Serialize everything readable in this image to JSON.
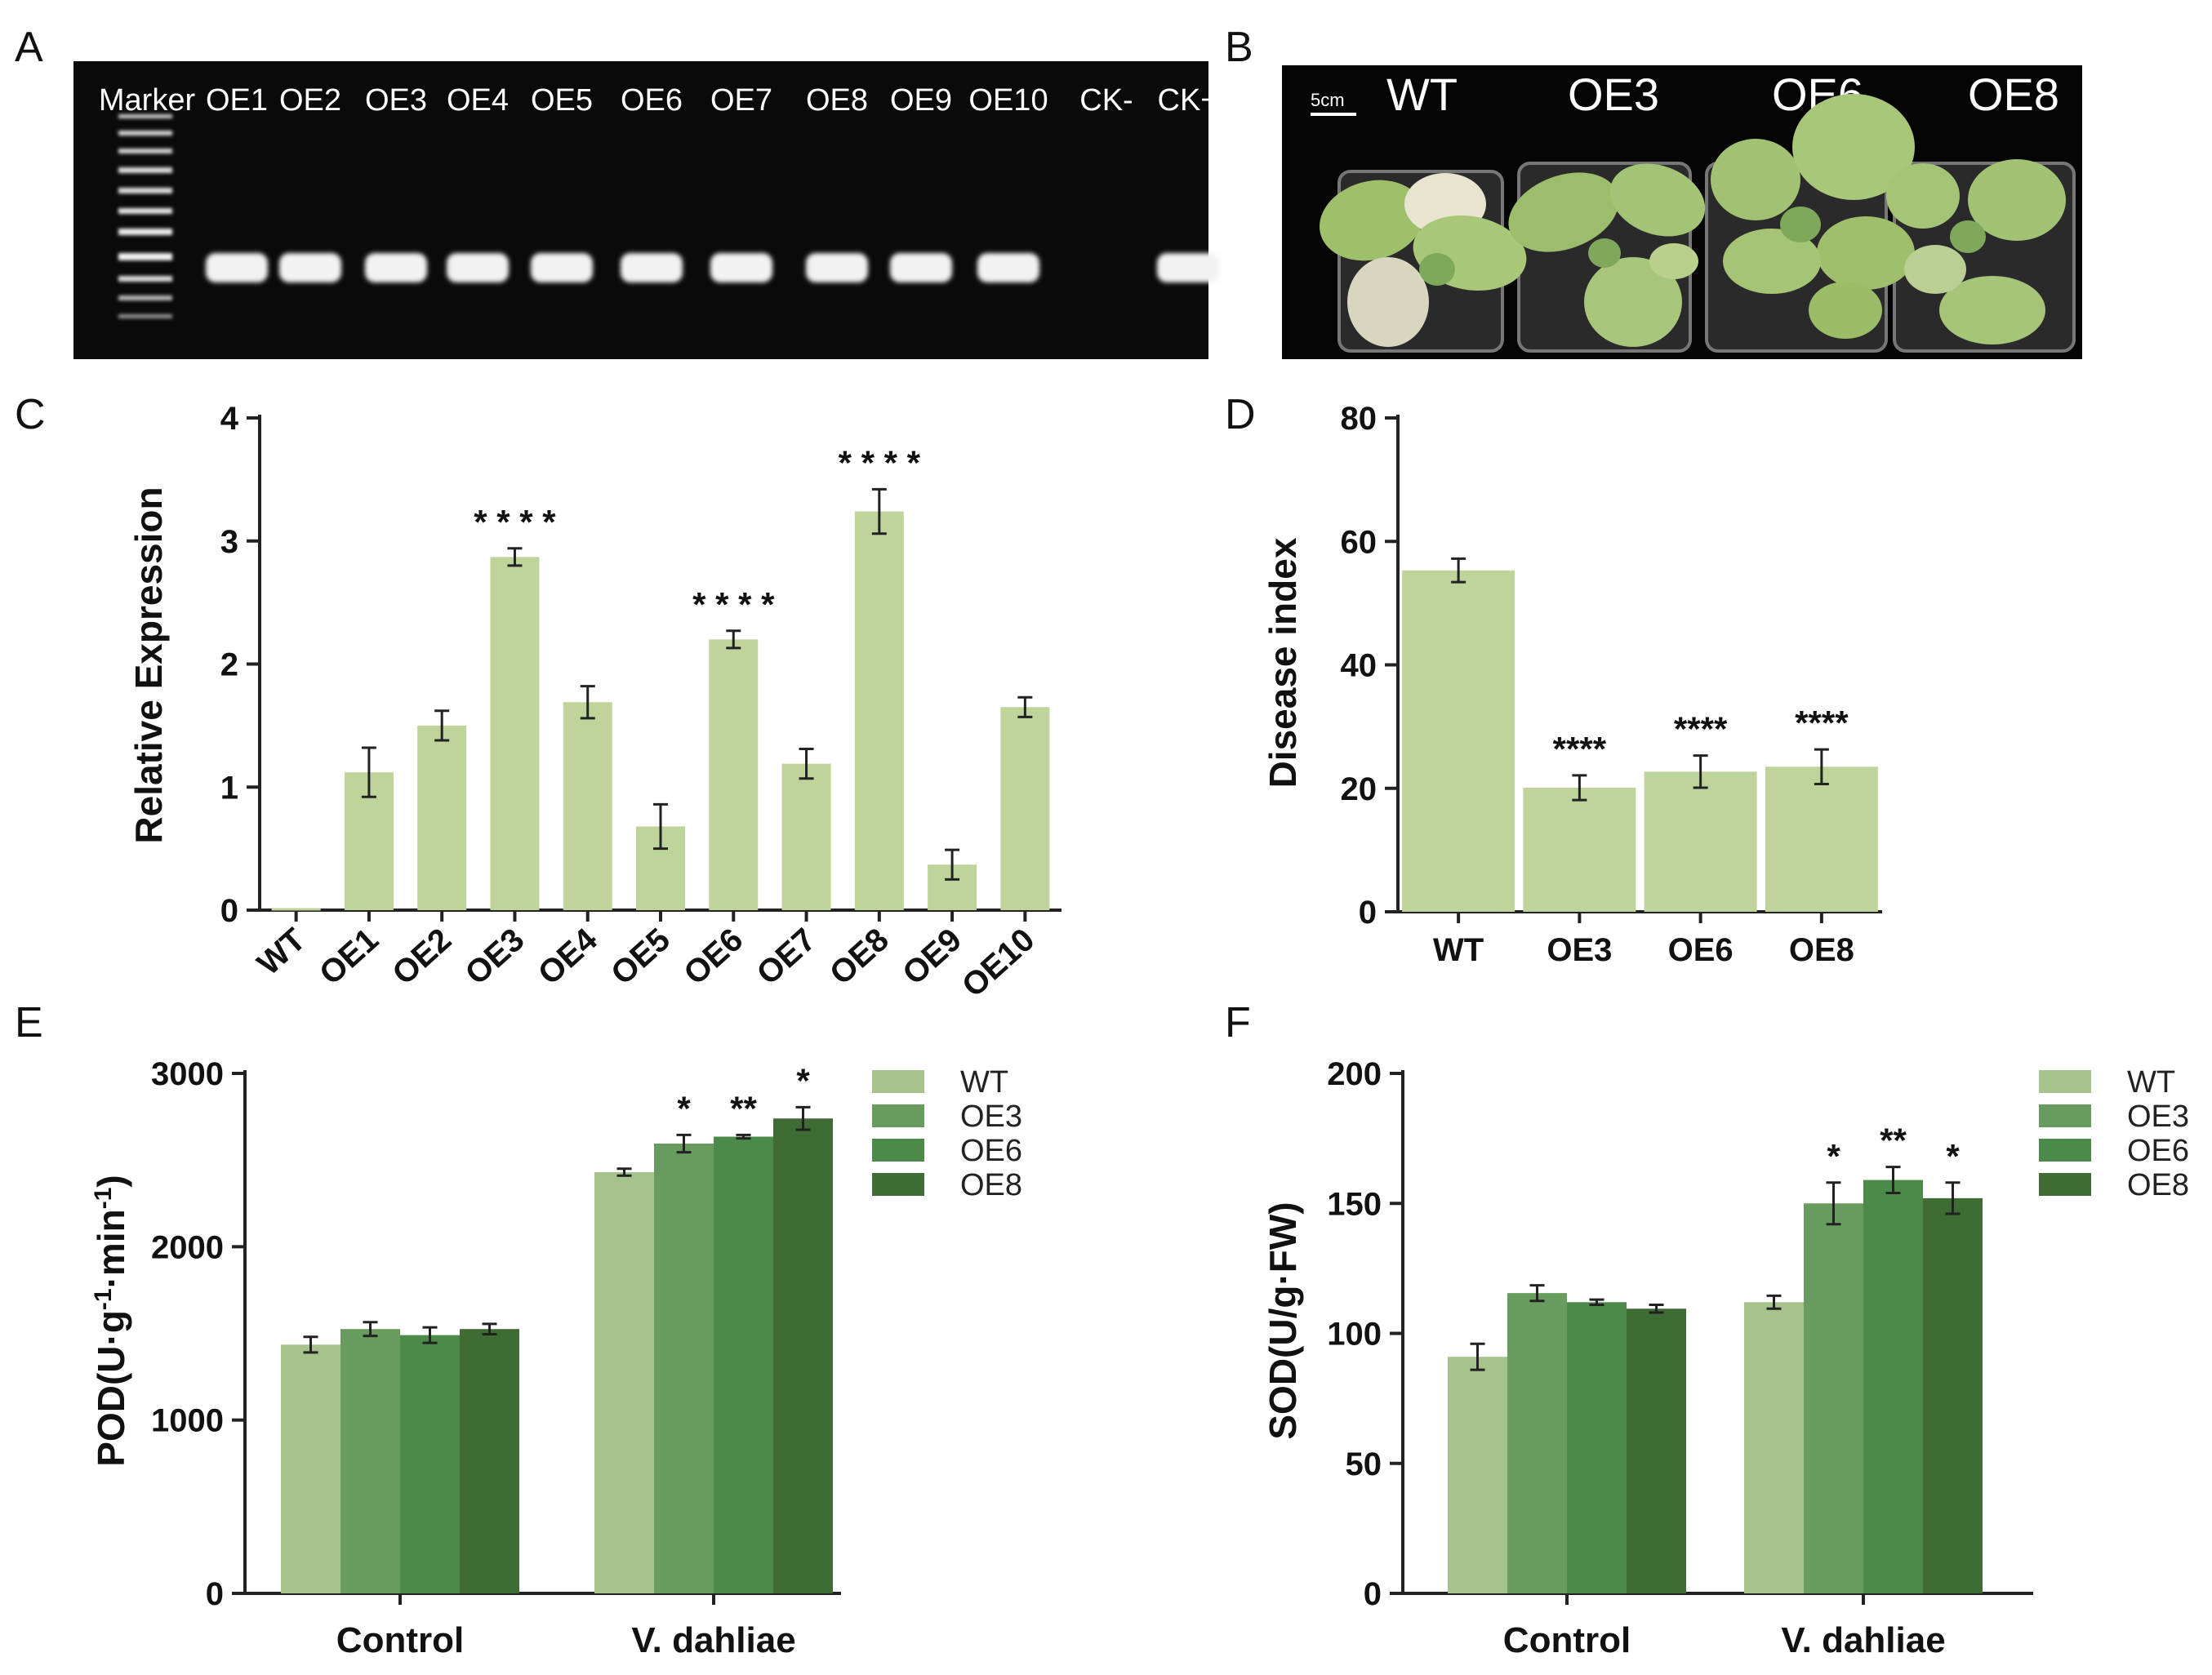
{
  "panels": {
    "a": {
      "label": "A",
      "lanes": [
        "Marker",
        "OE1",
        "OE2",
        "OE3",
        "OE4",
        "OE5",
        "OE6",
        "OE7",
        "OE8",
        "OE9",
        "OE10",
        "CK-",
        "CK+"
      ]
    },
    "b": {
      "label": "B",
      "scale_bar": "5cm",
      "plants": [
        "WT",
        "OE3",
        "OE6",
        "OE8"
      ]
    },
    "c": {
      "label": "C"
    },
    "d": {
      "label": "D"
    },
    "e": {
      "label": "E"
    },
    "f": {
      "label": "F"
    }
  },
  "colors": {
    "light": "#bfd49b",
    "wt": "#a5c38b",
    "oe3": "#689c5e",
    "oe6": "#4b8a48",
    "oe8": "#3f6b35"
  },
  "chart_data": [
    {
      "id": "C",
      "type": "bar",
      "categories": [
        "WT",
        "OE1",
        "OE2",
        "OE3",
        "OE4",
        "OE5",
        "OE6",
        "OE7",
        "OE8",
        "OE9",
        "OE10"
      ],
      "values": [
        0,
        1.12,
        1.5,
        2.87,
        1.69,
        0.68,
        2.2,
        1.19,
        3.24,
        0.37,
        1.65
      ],
      "errors": [
        0,
        0.2,
        0.12,
        0.07,
        0.13,
        0.18,
        0.07,
        0.12,
        0.18,
        0.12,
        0.08
      ],
      "significance": [
        "",
        "",
        "",
        "* * * *",
        "",
        "",
        "* * * *",
        "",
        "* * * *",
        "",
        ""
      ],
      "ylabel": "Relative Expression",
      "ylim": [
        0,
        4
      ],
      "yticks": [
        "0",
        "1",
        "2",
        "3",
        "4"
      ]
    },
    {
      "id": "D",
      "type": "bar",
      "categories": [
        "WT",
        "OE3",
        "OE6",
        "OE8"
      ],
      "values": [
        55.3,
        20.1,
        22.7,
        23.5
      ],
      "errors": [
        1.9,
        2.0,
        2.6,
        2.8
      ],
      "significance": [
        "",
        "****",
        "****",
        "****"
      ],
      "ylabel": "Disease index",
      "ylim": [
        0,
        80
      ],
      "yticks": [
        "0",
        "20",
        "40",
        "60",
        "80"
      ]
    },
    {
      "id": "E",
      "type": "bar",
      "categories": [
        "Control",
        "V. dahliae"
      ],
      "series": [
        {
          "name": "WT",
          "values": [
            1435,
            2430
          ],
          "errors": [
            45,
            20
          ]
        },
        {
          "name": "OE3",
          "values": [
            1525,
            2595
          ],
          "errors": [
            40,
            50
          ]
        },
        {
          "name": "OE6",
          "values": [
            1490,
            2635
          ],
          "errors": [
            45,
            10
          ]
        },
        {
          "name": "OE8",
          "values": [
            1525,
            2740
          ],
          "errors": [
            30,
            65
          ]
        }
      ],
      "significance": [
        [
          "",
          "",
          "",
          ""
        ],
        [
          "",
          "*",
          "**",
          "*"
        ]
      ],
      "ylabel_parts": [
        "POD(U·g",
        "-1",
        "·min",
        "-1",
        ")"
      ],
      "ylim": [
        0,
        3000
      ],
      "yticks": [
        "0",
        "1000",
        "2000",
        "3000"
      ]
    },
    {
      "id": "F",
      "type": "bar",
      "categories": [
        "Control",
        "V. dahliae"
      ],
      "series": [
        {
          "name": "WT",
          "values": [
            91,
            112
          ],
          "errors": [
            5,
            2.5
          ]
        },
        {
          "name": "OE3",
          "values": [
            115.5,
            150
          ],
          "errors": [
            3,
            8
          ]
        },
        {
          "name": "OE6",
          "values": [
            112,
            159
          ],
          "errors": [
            1,
            5
          ]
        },
        {
          "name": "OE8",
          "values": [
            109.5,
            152
          ],
          "errors": [
            1.5,
            6
          ]
        }
      ],
      "significance": [
        [
          "",
          "",
          "",
          ""
        ],
        [
          "",
          "*",
          "**",
          "*"
        ]
      ],
      "ylabel": "SOD(U/g·FW)",
      "ylim": [
        0,
        200
      ],
      "yticks": [
        "0",
        "50",
        "100",
        "150",
        "200"
      ]
    }
  ]
}
